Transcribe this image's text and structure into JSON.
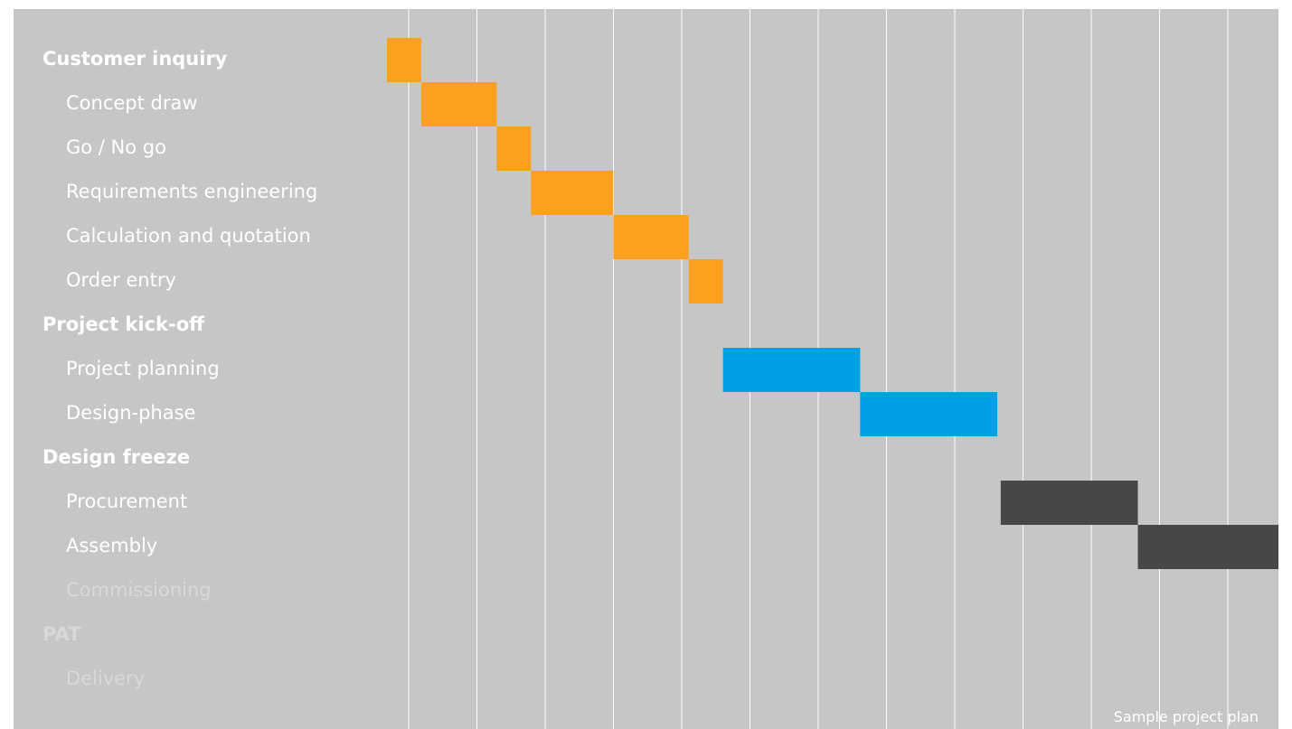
{
  "chart_data": {
    "type": "gantt",
    "caption": "Sample project plan",
    "time_axis": {
      "start": 0,
      "end": 13,
      "gridlines": 13,
      "tick_labels": []
    },
    "tasks": [
      {
        "label": "Customer inquiry",
        "milestone": true,
        "faded": false,
        "start": 0.0,
        "end": 0.5,
        "color": "#fca020"
      },
      {
        "label": "Concept draw",
        "milestone": false,
        "faded": false,
        "start": 0.5,
        "end": 1.6,
        "color": "#fca020"
      },
      {
        "label": "Go / No go",
        "milestone": false,
        "faded": false,
        "start": 1.6,
        "end": 2.1,
        "color": "#fca020"
      },
      {
        "label": "Requirements engineering",
        "milestone": false,
        "faded": false,
        "start": 2.1,
        "end": 3.3,
        "color": "#fca020"
      },
      {
        "label": "Calculation and quotation",
        "milestone": false,
        "faded": false,
        "start": 3.3,
        "end": 4.4,
        "color": "#fca020"
      },
      {
        "label": "Order entry",
        "milestone": false,
        "faded": false,
        "start": 4.4,
        "end": 4.9,
        "color": "#fca020"
      },
      {
        "label": "Project kick-off",
        "milestone": true,
        "faded": false
      },
      {
        "label": "Project planning",
        "milestone": false,
        "faded": false,
        "start": 4.9,
        "end": 6.9,
        "color": "#00a0e4"
      },
      {
        "label": "Design-phase",
        "milestone": false,
        "faded": false,
        "start": 6.9,
        "end": 8.9,
        "color": "#00a0e4"
      },
      {
        "label": "Design freeze",
        "milestone": true,
        "faded": false
      },
      {
        "label": "Procurement",
        "milestone": false,
        "faded": false,
        "start": 8.95,
        "end": 10.95,
        "color": "#474747"
      },
      {
        "label": "Assembly",
        "milestone": false,
        "faded": false,
        "start": 10.95,
        "end": 13.0,
        "color": "#474747"
      },
      {
        "label": "Commissioning",
        "milestone": false,
        "faded": true
      },
      {
        "label": "PAT",
        "milestone": true,
        "faded": true
      },
      {
        "label": "Delivery",
        "milestone": false,
        "faded": true
      }
    ]
  }
}
